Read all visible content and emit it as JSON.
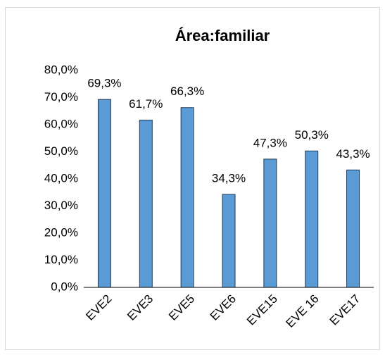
{
  "chart_data": {
    "type": "bar",
    "title": "Área:familiar",
    "categories": [
      "EVE2",
      "EVE3",
      "EVE5",
      "EVE6",
      "EVE15",
      "EVE 16",
      "EVE17"
    ],
    "values": [
      69.3,
      61.7,
      66.3,
      34.3,
      47.3,
      50.3,
      43.3
    ],
    "value_labels": [
      "69,3%",
      "61,7%",
      "66,3%",
      "34,3%",
      "47,3%",
      "50,3%",
      "43,3%"
    ],
    "color": "#5b9bd5",
    "ylim": [
      0,
      80
    ],
    "yticks": [
      {
        "value": 0,
        "label": "0,0%"
      },
      {
        "value": 10,
        "label": "10,0%"
      },
      {
        "value": 20,
        "label": "20,0%"
      },
      {
        "value": 30,
        "label": "30,0%"
      },
      {
        "value": 40,
        "label": "40,0%"
      },
      {
        "value": 50,
        "label": "50,0%"
      },
      {
        "value": 60,
        "label": "60,0%"
      },
      {
        "value": 70,
        "label": "70,0%"
      },
      {
        "value": 80,
        "label": "80,0%"
      }
    ],
    "grid": false
  }
}
